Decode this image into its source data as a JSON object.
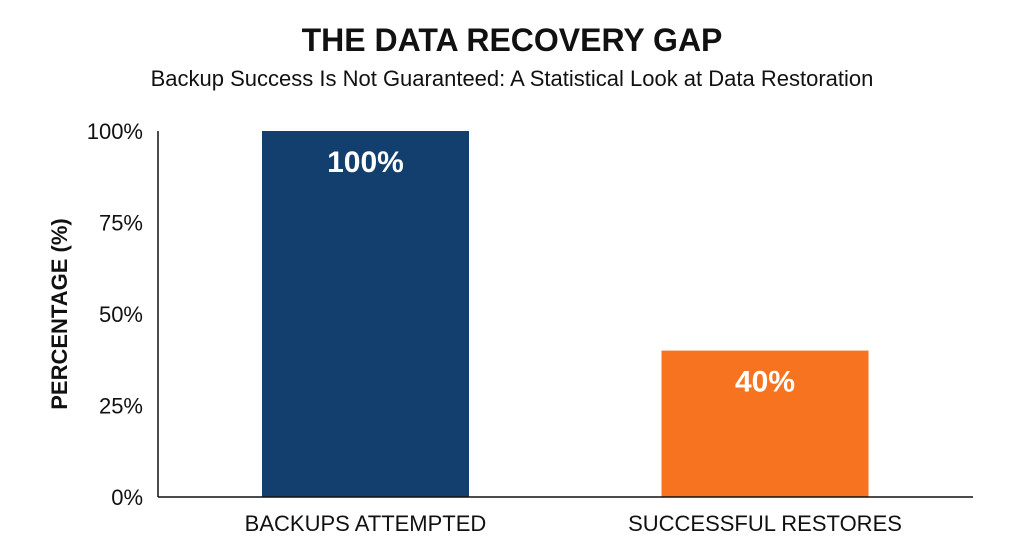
{
  "chart_data": {
    "type": "bar",
    "title": "THE DATA RECOVERY GAP",
    "subtitle": "Backup Success Is Not Guaranteed: A Statistical Look at Data Restoration",
    "xlabel": "",
    "ylabel": "PERCENTAGE (%)",
    "ylim": [
      0,
      100
    ],
    "yticks": [
      "0%",
      "25%",
      "50%",
      "75%",
      "100%"
    ],
    "ytick_values": [
      0,
      25,
      50,
      75,
      100
    ],
    "categories": [
      "BACKUPS ATTEMPTED",
      "SUCCESSFUL RESTORES"
    ],
    "values": [
      100,
      40
    ],
    "data_labels": [
      "100%",
      "40%"
    ],
    "colors": [
      "#123f6e",
      "#f77320"
    ],
    "grid": false,
    "legend": "none"
  }
}
